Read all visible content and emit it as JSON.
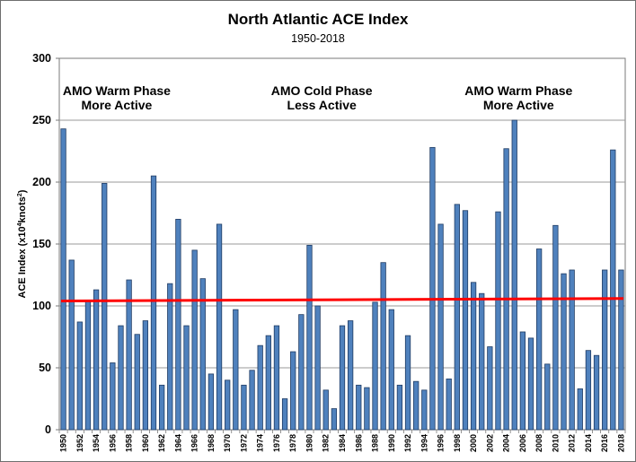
{
  "chart_data": {
    "type": "bar",
    "title": "North Atlantic ACE Index",
    "subtitle": "1950-2018",
    "ylabel_main": "ACE Index (x10",
    "ylabel_sup1": "4",
    "ylabel_mid": "knots",
    "ylabel_sup2": "2",
    "ylabel_end": ")",
    "xlabel": "",
    "ylim": [
      0,
      300
    ],
    "yticks": [
      0,
      50,
      100,
      150,
      200,
      250,
      300
    ],
    "grid": true,
    "bar_color": "#4f81bd",
    "bar_edge_color": "#1f3b63",
    "trend_color": "#ff0000",
    "trend_line": {
      "start": [
        1950,
        104
      ],
      "end": [
        2018,
        106
      ]
    },
    "tick_label_years": [
      1950,
      1952,
      1954,
      1956,
      1958,
      1960,
      1962,
      1964,
      1966,
      1968,
      1970,
      1972,
      1974,
      1976,
      1978,
      1980,
      1982,
      1984,
      1986,
      1988,
      1990,
      1992,
      1994,
      1996,
      1998,
      2000,
      2002,
      2004,
      2006,
      2008,
      2010,
      2012,
      2014,
      2016,
      2018
    ],
    "annotations": [
      {
        "lines": [
          "AMO Warm Phase",
          "More Active"
        ],
        "year": 1956.5
      },
      {
        "lines": [
          "AMO Cold Phase",
          "Less Active"
        ],
        "year": 1981.5
      },
      {
        "lines": [
          "AMO Warm Phase",
          "More Active"
        ],
        "year": 2005.5
      }
    ],
    "categories": [
      1950,
      1951,
      1952,
      1953,
      1954,
      1955,
      1956,
      1957,
      1958,
      1959,
      1960,
      1961,
      1962,
      1963,
      1964,
      1965,
      1966,
      1967,
      1968,
      1969,
      1970,
      1971,
      1972,
      1973,
      1974,
      1975,
      1976,
      1977,
      1978,
      1979,
      1980,
      1981,
      1982,
      1983,
      1984,
      1985,
      1986,
      1987,
      1988,
      1989,
      1990,
      1991,
      1992,
      1993,
      1994,
      1995,
      1996,
      1997,
      1998,
      1999,
      2000,
      2001,
      2002,
      2003,
      2004,
      2005,
      2006,
      2007,
      2008,
      2009,
      2010,
      2011,
      2012,
      2013,
      2014,
      2015,
      2016,
      2017,
      2018
    ],
    "values": [
      243,
      137,
      87,
      104,
      113,
      199,
      54,
      84,
      121,
      77,
      88,
      205,
      36,
      118,
      170,
      84,
      145,
      122,
      45,
      166,
      40,
      97,
      36,
      48,
      68,
      76,
      84,
      25,
      63,
      93,
      149,
      100,
      32,
      17,
      84,
      88,
      36,
      34,
      103,
      135,
      97,
      36,
      76,
      39,
      32,
      228,
      166,
      41,
      182,
      177,
      119,
      110,
      67,
      176,
      227,
      250,
      79,
      74,
      146,
      53,
      165,
      126,
      129,
      33,
      64,
      60,
      129,
      226,
      129
    ]
  }
}
